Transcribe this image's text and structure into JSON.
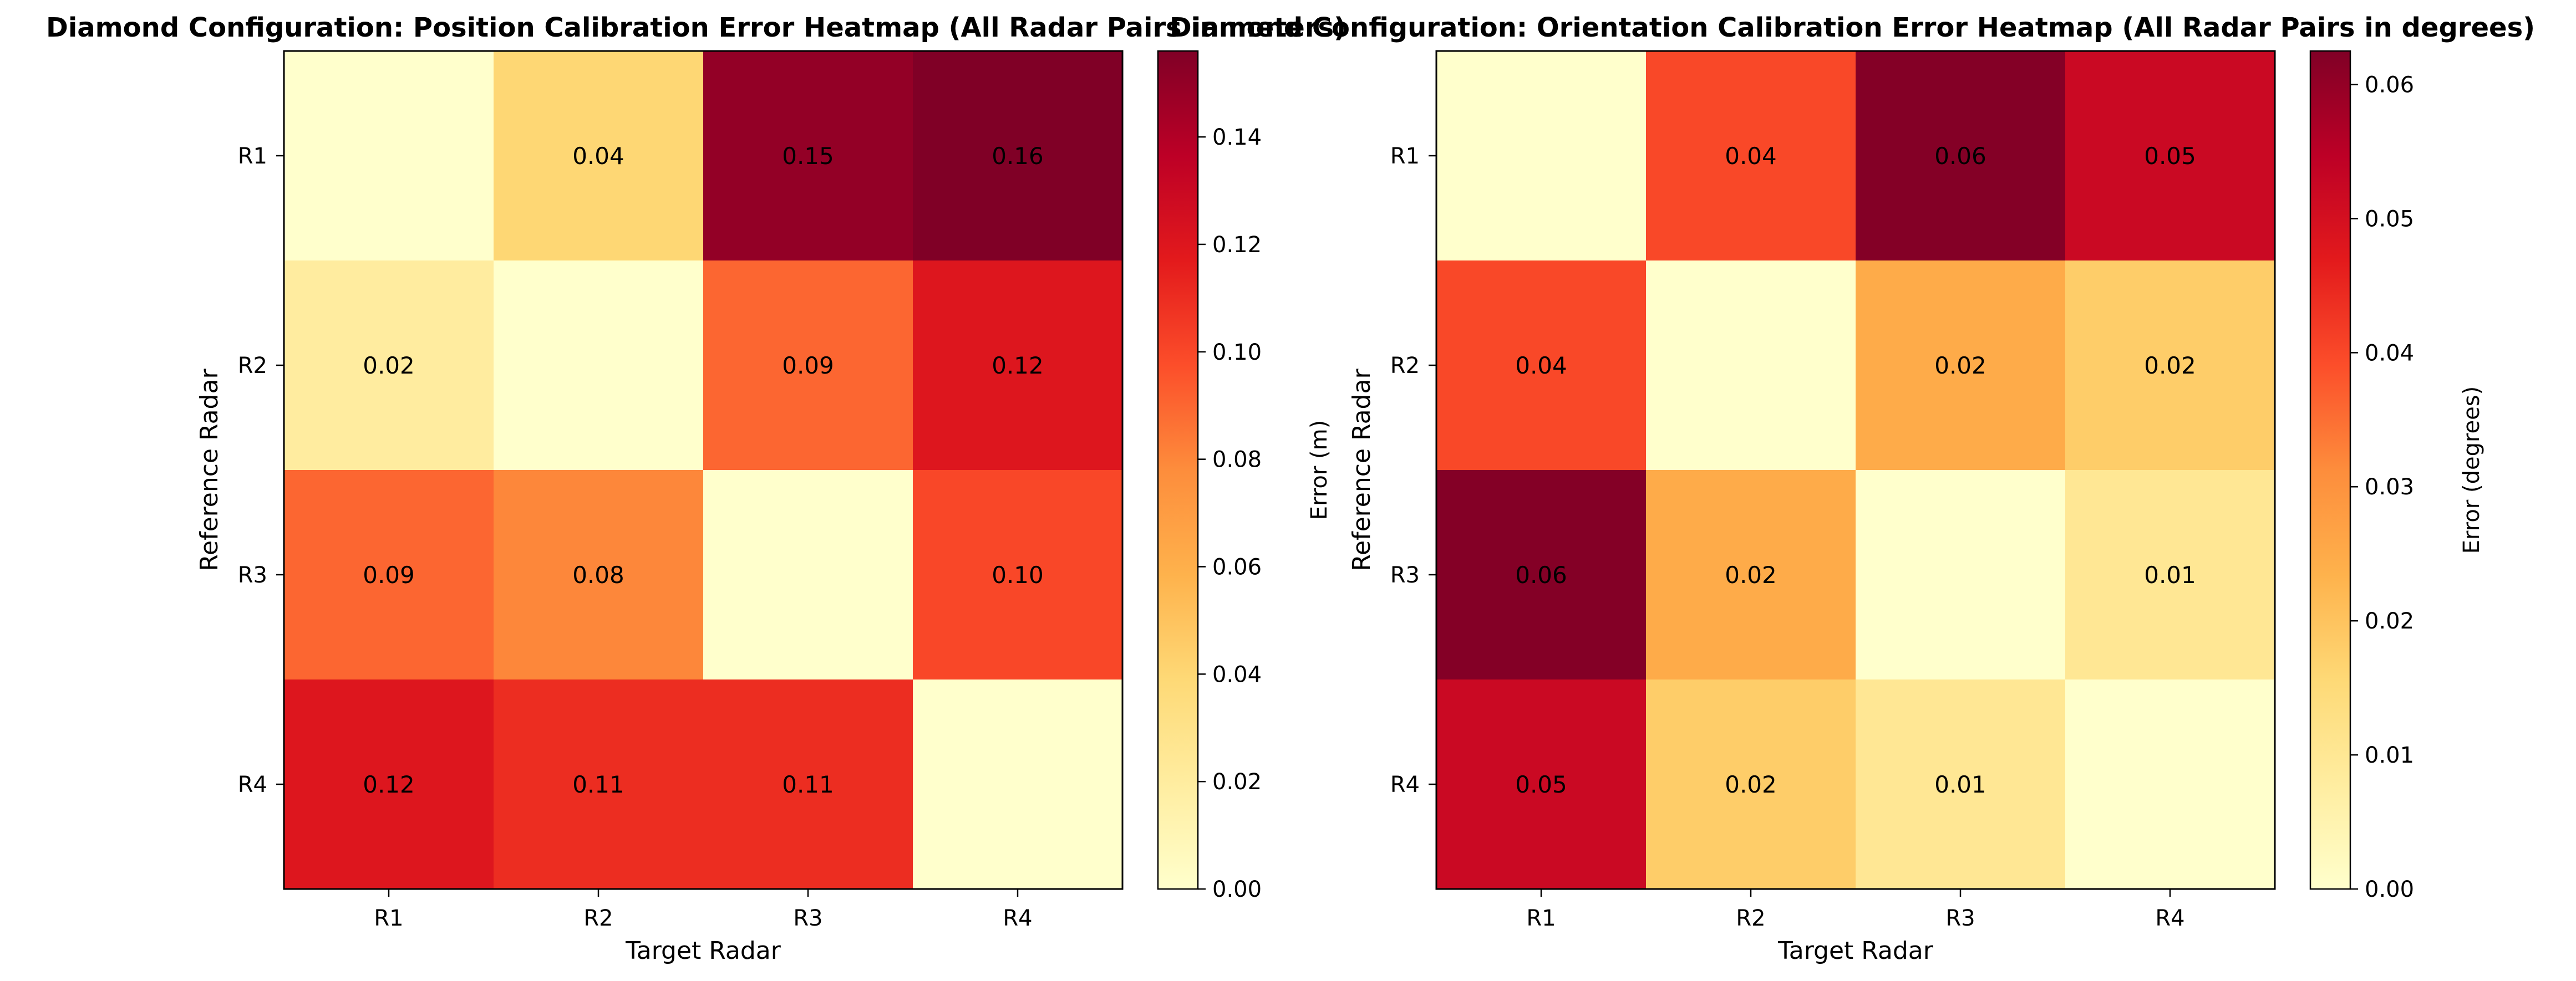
{
  "chart_data": [
    {
      "type": "heatmap",
      "title": "Diamond Configuration: Position Calibration Error Heatmap (All Radar Pairs in meters)",
      "xlabel": "Target Radar",
      "ylabel": "Reference Radar",
      "x_categories": [
        "R1",
        "R2",
        "R3",
        "R4"
      ],
      "y_categories": [
        "R1",
        "R2",
        "R3",
        "R4"
      ],
      "values": [
        [
          0.0,
          0.04,
          0.15,
          0.16
        ],
        [
          0.02,
          0.0,
          0.09,
          0.12
        ],
        [
          0.09,
          0.08,
          0.0,
          0.1
        ],
        [
          0.12,
          0.11,
          0.11,
          0.0
        ]
      ],
      "cell_labels": [
        [
          "",
          "0.04",
          "0.15",
          "0.16"
        ],
        [
          "0.02",
          "",
          "0.09",
          "0.12"
        ],
        [
          "0.09",
          "0.08",
          "",
          "0.10"
        ],
        [
          "0.12",
          "0.11",
          "0.11",
          ""
        ]
      ],
      "colormap": "YlOrRd",
      "vmin": 0,
      "vmax": 0.156,
      "colorbar": {
        "label": "Error (m)",
        "ticks": [
          0.0,
          0.02,
          0.04,
          0.06,
          0.08,
          0.1,
          0.12,
          0.14
        ],
        "tick_labels": [
          "0.00",
          "0.02",
          "0.04",
          "0.06",
          "0.08",
          "0.10",
          "0.12",
          "0.14"
        ]
      },
      "grid": false
    },
    {
      "type": "heatmap",
      "title": "Diamond Configuration: Orientation Calibration Error Heatmap (All Radar Pairs in degrees)",
      "xlabel": "Target Radar",
      "ylabel": "Reference Radar",
      "x_categories": [
        "R1",
        "R2",
        "R3",
        "R4"
      ],
      "y_categories": [
        "R1",
        "R2",
        "R3",
        "R4"
      ],
      "values": [
        [
          0.0,
          0.04,
          0.062,
          0.052
        ],
        [
          0.04,
          0.0,
          0.025,
          0.018
        ],
        [
          0.062,
          0.025,
          0.0,
          0.01
        ],
        [
          0.052,
          0.018,
          0.01,
          0.0
        ]
      ],
      "cell_labels": [
        [
          "",
          "0.04",
          "0.06",
          "0.05"
        ],
        [
          "0.04",
          "",
          "0.02",
          "0.02"
        ],
        [
          "0.06",
          "0.02",
          "",
          "0.01"
        ],
        [
          "0.05",
          "0.02",
          "0.01",
          ""
        ]
      ],
      "colormap": "YlOrRd",
      "vmin": 0,
      "vmax": 0.0625,
      "colorbar": {
        "label": "Error (degrees)",
        "ticks": [
          0.0,
          0.01,
          0.02,
          0.03,
          0.04,
          0.05,
          0.06
        ],
        "tick_labels": [
          "0.00",
          "0.01",
          "0.02",
          "0.03",
          "0.04",
          "0.05",
          "0.06"
        ]
      },
      "grid": false
    }
  ]
}
